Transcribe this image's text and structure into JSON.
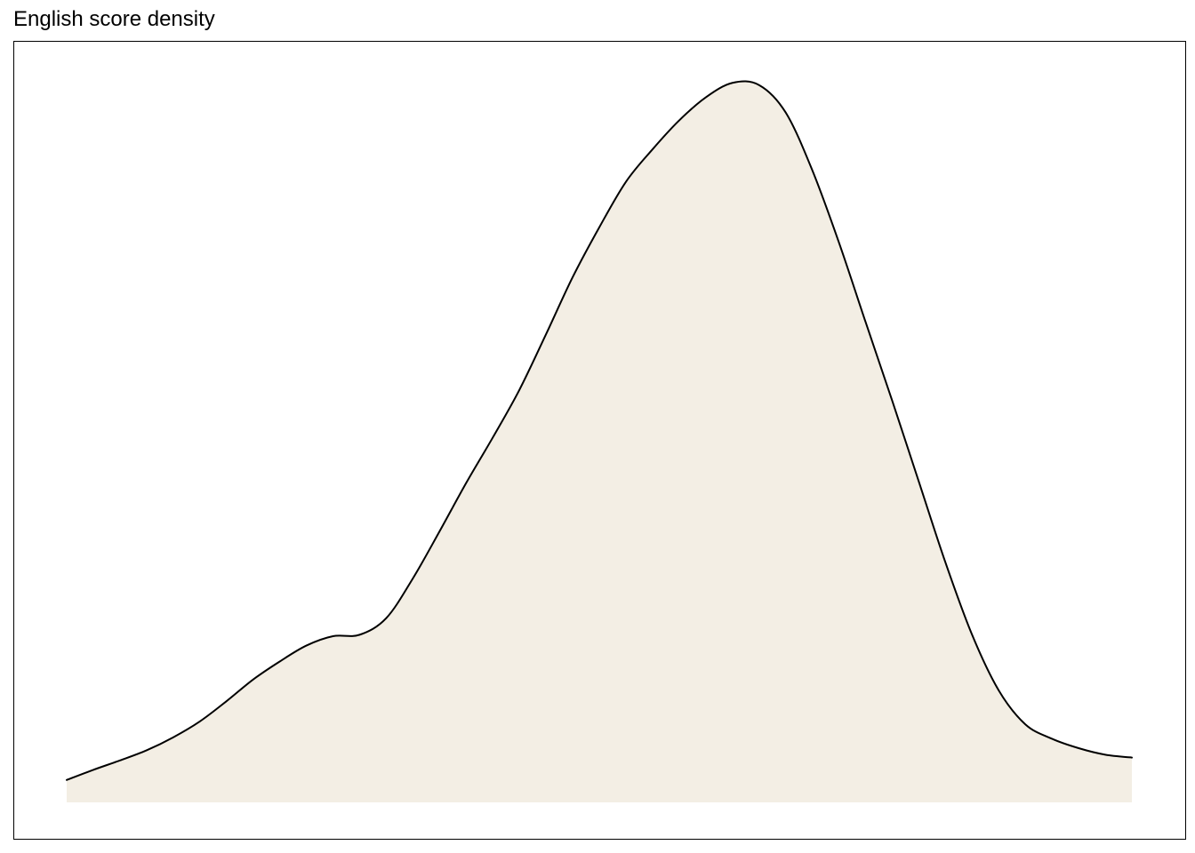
{
  "chart_data": {
    "type": "area",
    "title": "English score density",
    "xlabel": "",
    "ylabel": "",
    "axes_visible": false,
    "grid": false,
    "legend": "none",
    "fill_color": "#F3EEE4",
    "line_color": "#000000",
    "xlim": [
      0,
      1
    ],
    "ylim": [
      0,
      1
    ],
    "x": [
      0.0,
      0.025,
      0.05,
      0.075,
      0.1,
      0.125,
      0.15,
      0.175,
      0.2,
      0.225,
      0.25,
      0.275,
      0.3,
      0.325,
      0.35,
      0.375,
      0.4,
      0.425,
      0.45,
      0.475,
      0.5,
      0.525,
      0.55,
      0.575,
      0.6,
      0.625,
      0.65,
      0.675,
      0.7,
      0.725,
      0.75,
      0.775,
      0.8,
      0.825,
      0.85,
      0.875,
      0.9,
      0.925,
      0.95,
      0.975,
      1.0
    ],
    "y": [
      0.031,
      0.045,
      0.058,
      0.072,
      0.09,
      0.112,
      0.14,
      0.17,
      0.195,
      0.217,
      0.23,
      0.232,
      0.255,
      0.31,
      0.375,
      0.442,
      0.505,
      0.571,
      0.648,
      0.727,
      0.796,
      0.859,
      0.904,
      0.944,
      0.976,
      0.996,
      0.993,
      0.955,
      0.875,
      0.775,
      0.665,
      0.556,
      0.444,
      0.332,
      0.232,
      0.155,
      0.108,
      0.088,
      0.075,
      0.066,
      0.062
    ]
  }
}
